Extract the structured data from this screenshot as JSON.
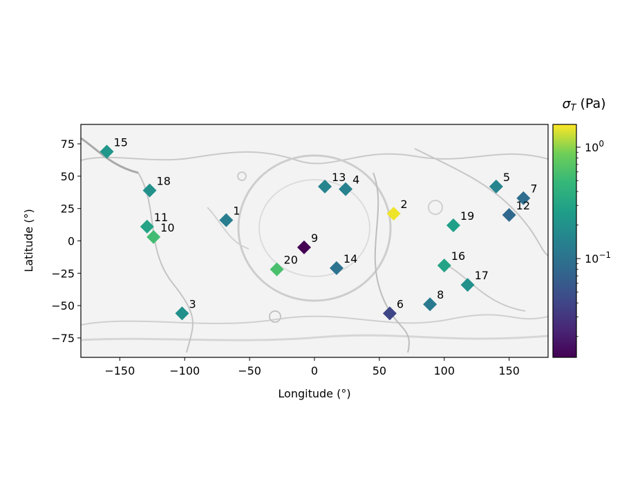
{
  "chart_data": {
    "type": "scatter",
    "title": "",
    "xlabel": "Longitude (°)",
    "ylabel": "Latitude (°)",
    "xlim": [
      -180,
      180
    ],
    "ylim": [
      -90,
      90
    ],
    "xticks": [
      -150,
      -100,
      -50,
      0,
      50,
      100,
      150
    ],
    "yticks": [
      -75,
      -50,
      -25,
      0,
      25,
      50,
      75
    ],
    "xtick_labels": [
      "−150",
      "−100",
      "−50",
      "0",
      "50",
      "100",
      "150"
    ],
    "ytick_labels": [
      "−75",
      "−50",
      "−25",
      "0",
      "25",
      "50",
      "75"
    ],
    "background": "grayscale shaded relief map",
    "grid": false,
    "marker": "diamond",
    "colormap": "viridis",
    "colorbar": {
      "label": "σ_T (Pa)",
      "scale": "log",
      "range": [
        0.013,
        1.6
      ],
      "tick_labels": [
        "10^0",
        "10^-1"
      ],
      "tick_values": [
        1,
        0.1
      ],
      "placement": "right"
    },
    "points": [
      {
        "label": "1",
        "lon": -68,
        "lat": 16,
        "sigma": 0.13
      },
      {
        "label": "2",
        "lon": 61,
        "lat": 21,
        "sigma": 1.5
      },
      {
        "label": "3",
        "lon": -102,
        "lat": -56,
        "sigma": 0.2
      },
      {
        "label": "4",
        "lon": 24,
        "lat": 40,
        "sigma": 0.14
      },
      {
        "label": "5",
        "lon": 140,
        "lat": 42,
        "sigma": 0.15
      },
      {
        "label": "6",
        "lon": 58,
        "lat": -56,
        "sigma": 0.04
      },
      {
        "label": "7",
        "lon": 161,
        "lat": 33,
        "sigma": 0.09
      },
      {
        "label": "8",
        "lon": 89,
        "lat": -49,
        "sigma": 0.12
      },
      {
        "label": "9",
        "lon": -8,
        "lat": -5,
        "sigma": 0.013
      },
      {
        "label": "10",
        "lon": -124,
        "lat": 3,
        "sigma": 0.55
      },
      {
        "label": "11",
        "lon": -129,
        "lat": 11,
        "sigma": 0.3
      },
      {
        "label": "12",
        "lon": 150,
        "lat": 20,
        "sigma": 0.08
      },
      {
        "label": "13",
        "lon": 8,
        "lat": 42,
        "sigma": 0.15
      },
      {
        "label": "14",
        "lon": 17,
        "lat": -21,
        "sigma": 0.1
      },
      {
        "label": "15",
        "lon": -160,
        "lat": 69,
        "sigma": 0.22
      },
      {
        "label": "16",
        "lon": 100,
        "lat": -19,
        "sigma": 0.3
      },
      {
        "label": "17",
        "lon": 118,
        "lat": -34,
        "sigma": 0.2
      },
      {
        "label": "18",
        "lon": -127,
        "lat": 39,
        "sigma": 0.2
      },
      {
        "label": "19",
        "lon": 107,
        "lat": 12,
        "sigma": 0.27
      },
      {
        "label": "20",
        "lon": -29,
        "lat": -22,
        "sigma": 0.6
      }
    ]
  }
}
